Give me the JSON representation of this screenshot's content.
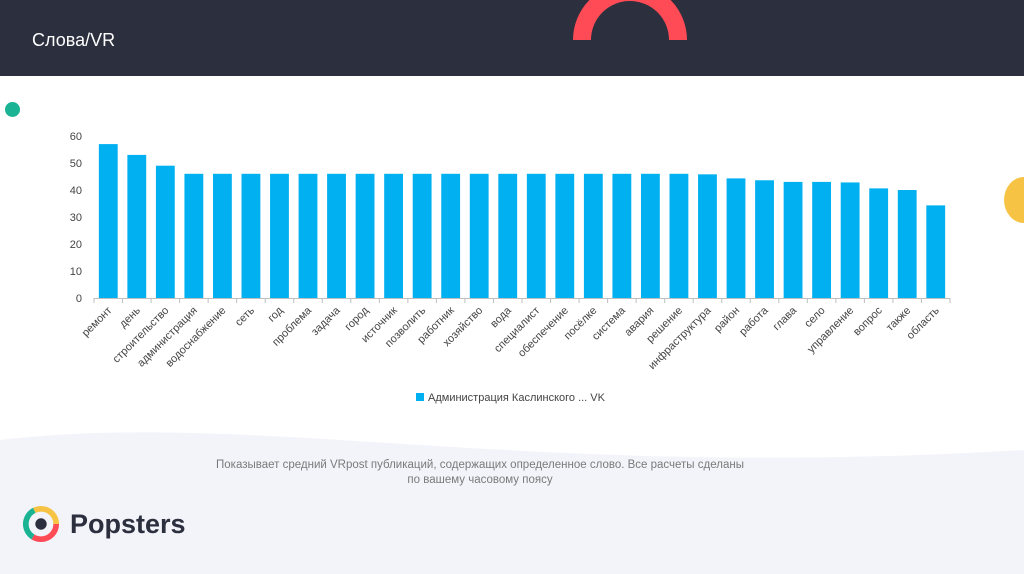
{
  "header": {
    "title": "Слова/VR"
  },
  "chart_data": {
    "type": "bar",
    "categories": [
      "ремонт",
      "день",
      "строительство",
      "администрация",
      "водоснабжение",
      "сеть",
      "год",
      "проблема",
      "задача",
      "город",
      "источник",
      "позволить",
      "работник",
      "хозяйство",
      "вода",
      "специалист",
      "обеспечение",
      "посёлке",
      "система",
      "авария",
      "решение",
      "инфраструктура",
      "район",
      "работа",
      "глава",
      "село",
      "управление",
      "вопрос",
      "также",
      "область"
    ],
    "series": [
      {
        "name": "Администрация Каслинского ... VK",
        "values": [
          57,
          53,
          49,
          46,
          46,
          46,
          46,
          46,
          46,
          46,
          46,
          46,
          46,
          46,
          46,
          46,
          46,
          46,
          46,
          46,
          46,
          45.8,
          44.3,
          43.6,
          43,
          43,
          42.8,
          40.6,
          40,
          34.3
        ],
        "color": "#00b0f0"
      }
    ],
    "yticks": [
      "0",
      "10",
      "20",
      "30",
      "40",
      "50",
      "60"
    ],
    "ylim": [
      0,
      60
    ],
    "grid": false,
    "legend_position": "bottom"
  },
  "caption": {
    "line1": "Показывает средний VRpost публикаций, содержащих определенное слово. Все расчеты сделаны",
    "line2": "по вашему часовому поясу"
  },
  "brand": {
    "name": "Popsters"
  },
  "colors": {
    "header_bg": "#2b2f3e",
    "bar": "#00b0f0",
    "accent_red": "#ff4b55",
    "accent_green": "#1ab394",
    "accent_yellow": "#f6c344"
  }
}
